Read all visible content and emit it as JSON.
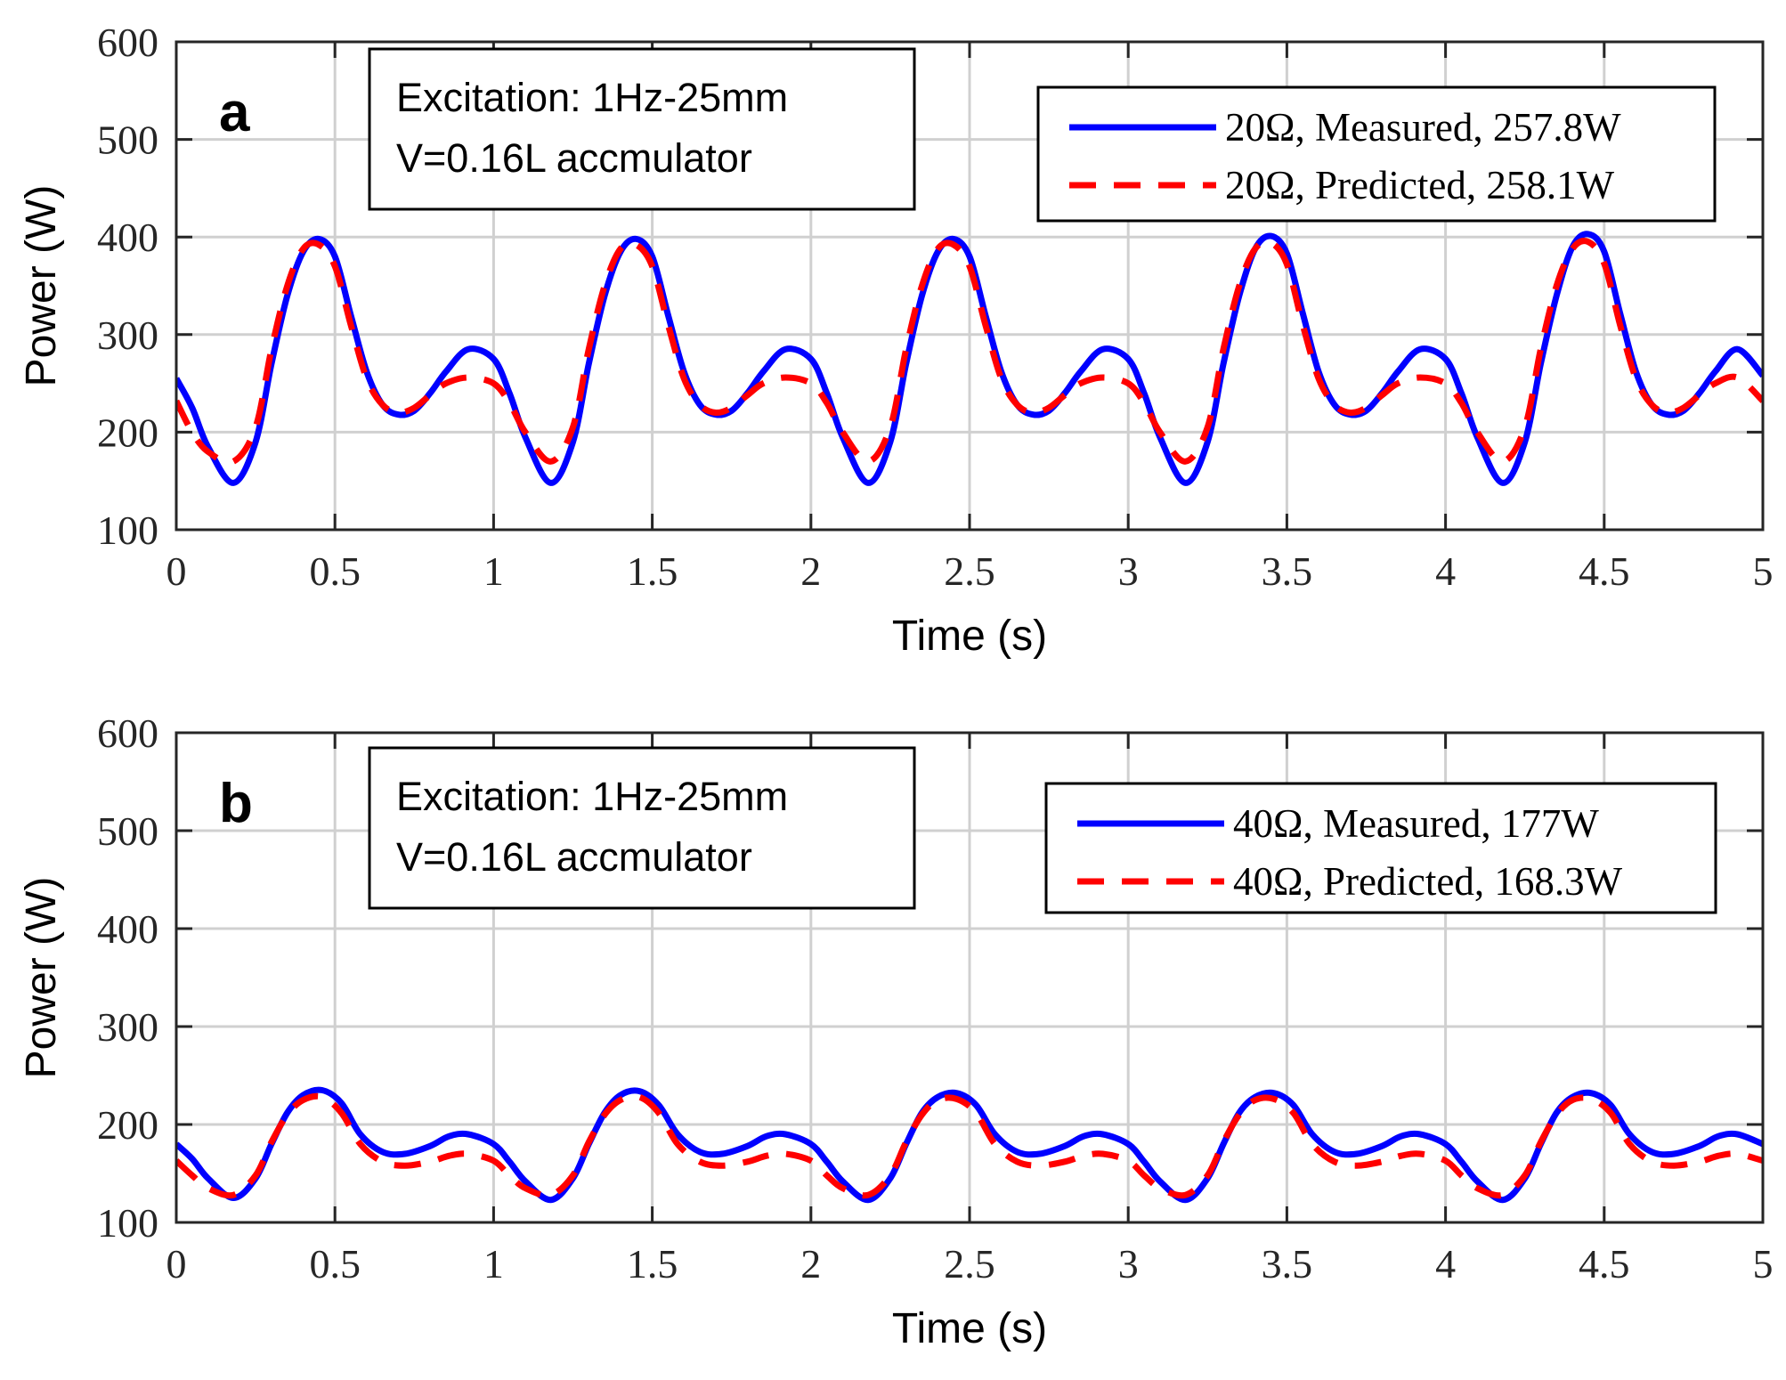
{
  "chart_data": [
    {
      "type": "line",
      "panel_label": "a",
      "xlabel": "Time (s)",
      "ylabel": "Power (W)",
      "xlim": [
        0,
        5
      ],
      "ylim": [
        100,
        600
      ],
      "xticks": [
        0,
        0.5,
        1,
        1.5,
        2,
        2.5,
        3,
        3.5,
        4,
        4.5,
        5
      ],
      "xtick_labels": [
        "0",
        "0.5",
        "1",
        "1.5",
        "2",
        "2.5",
        "3",
        "3.5",
        "4",
        "4.5",
        "5"
      ],
      "yticks": [
        100,
        200,
        300,
        400,
        500,
        600
      ],
      "ytick_labels": [
        "100",
        "200",
        "300",
        "400",
        "500",
        "600"
      ],
      "grid": true,
      "annotation": [
        "Excitation: 1Hz-25mm",
        "V=0.16L accmulator"
      ],
      "legend_position": "top-right",
      "series": [
        {
          "name": "20Ω, Measured, 257.8W",
          "color": "#0000ff",
          "style": "solid",
          "x": [
            0,
            0.05,
            0.1,
            0.18,
            0.25,
            0.3,
            0.35,
            0.4,
            0.45,
            0.5,
            0.55,
            0.6,
            0.65,
            0.7,
            0.75,
            0.8,
            0.85,
            0.92,
            1.0,
            1.05,
            1.1,
            1.18,
            1.25,
            1.3,
            1.35,
            1.4,
            1.45,
            1.5,
            1.55,
            1.6,
            1.65,
            1.7,
            1.75,
            1.8,
            1.85,
            1.92,
            2.0,
            2.05,
            2.1,
            2.18,
            2.25,
            2.3,
            2.35,
            2.4,
            2.45,
            2.5,
            2.55,
            2.6,
            2.65,
            2.7,
            2.75,
            2.8,
            2.85,
            2.92,
            3.0,
            3.05,
            3.1,
            3.18,
            3.25,
            3.3,
            3.35,
            3.4,
            3.45,
            3.5,
            3.55,
            3.6,
            3.65,
            3.7,
            3.75,
            3.8,
            3.85,
            3.92,
            4.0,
            4.05,
            4.1,
            4.18,
            4.25,
            4.3,
            4.35,
            4.4,
            4.45,
            4.5,
            4.55,
            4.6,
            4.65,
            4.7,
            4.75,
            4.8,
            4.85,
            4.92,
            5.0
          ],
          "values": [
            255,
            225,
            185,
            148,
            190,
            270,
            340,
            385,
            398,
            380,
            320,
            262,
            228,
            218,
            222,
            240,
            262,
            285,
            275,
            240,
            195,
            148,
            190,
            270,
            340,
            385,
            398,
            380,
            320,
            262,
            228,
            218,
            222,
            240,
            262,
            285,
            275,
            240,
            195,
            148,
            190,
            270,
            340,
            385,
            398,
            380,
            320,
            262,
            228,
            218,
            222,
            240,
            262,
            285,
            275,
            240,
            195,
            148,
            190,
            270,
            340,
            388,
            401,
            383,
            322,
            262,
            228,
            218,
            222,
            240,
            262,
            285,
            275,
            240,
            195,
            148,
            190,
            270,
            340,
            390,
            403,
            385,
            322,
            262,
            228,
            218,
            222,
            240,
            262,
            285,
            258
          ]
        },
        {
          "name": "20Ω, Predicted, 258.1W",
          "color": "#ff0000",
          "style": "dashed",
          "x": [
            0,
            0.05,
            0.1,
            0.18,
            0.25,
            0.3,
            0.35,
            0.4,
            0.45,
            0.5,
            0.55,
            0.6,
            0.65,
            0.7,
            0.75,
            0.8,
            0.85,
            0.92,
            1.0,
            1.05,
            1.1,
            1.18,
            1.25,
            1.3,
            1.35,
            1.4,
            1.45,
            1.5,
            1.55,
            1.6,
            1.65,
            1.7,
            1.75,
            1.8,
            1.85,
            1.92,
            2.0,
            2.05,
            2.1,
            2.18,
            2.25,
            2.3,
            2.35,
            2.4,
            2.45,
            2.5,
            2.55,
            2.6,
            2.65,
            2.7,
            2.75,
            2.8,
            2.85,
            2.92,
            3.0,
            3.05,
            3.1,
            3.18,
            3.25,
            3.3,
            3.35,
            3.4,
            3.45,
            3.5,
            3.55,
            3.6,
            3.65,
            3.7,
            3.75,
            3.8,
            3.85,
            3.92,
            4.0,
            4.05,
            4.1,
            4.18,
            4.25,
            4.3,
            4.35,
            4.4,
            4.45,
            4.5,
            4.55,
            4.6,
            4.65,
            4.7,
            4.75,
            4.8,
            4.85,
            4.92,
            5.0
          ],
          "values": [
            232,
            200,
            180,
            170,
            205,
            285,
            350,
            388,
            392,
            370,
            310,
            255,
            228,
            220,
            225,
            238,
            250,
            256,
            250,
            230,
            200,
            170,
            205,
            285,
            350,
            388,
            392,
            370,
            310,
            255,
            228,
            220,
            225,
            238,
            250,
            256,
            250,
            230,
            200,
            170,
            205,
            285,
            350,
            388,
            392,
            370,
            310,
            255,
            228,
            220,
            225,
            238,
            250,
            256,
            250,
            230,
            200,
            170,
            205,
            285,
            350,
            388,
            394,
            372,
            310,
            255,
            228,
            220,
            225,
            238,
            250,
            256,
            250,
            230,
            200,
            170,
            205,
            285,
            350,
            388,
            395,
            373,
            310,
            255,
            228,
            220,
            225,
            238,
            250,
            256,
            232
          ]
        }
      ]
    },
    {
      "type": "line",
      "panel_label": "b",
      "xlabel": "Time (s)",
      "ylabel": "Power (W)",
      "xlim": [
        0,
        5
      ],
      "ylim": [
        100,
        600
      ],
      "xticks": [
        0,
        0.5,
        1,
        1.5,
        2,
        2.5,
        3,
        3.5,
        4,
        4.5,
        5
      ],
      "xtick_labels": [
        "0",
        "0.5",
        "1",
        "1.5",
        "2",
        "2.5",
        "3",
        "3.5",
        "4",
        "4.5",
        "5"
      ],
      "yticks": [
        100,
        200,
        300,
        400,
        500,
        600
      ],
      "ytick_labels": [
        "100",
        "200",
        "300",
        "400",
        "500",
        "600"
      ],
      "grid": true,
      "annotation": [
        "Excitation: 1Hz-25mm",
        "V=0.16L accmulator"
      ],
      "legend_position": "top-right",
      "series": [
        {
          "name": "40Ω, Measured, 177W",
          "color": "#0000ff",
          "style": "solid",
          "x": [
            0,
            0.05,
            0.1,
            0.18,
            0.25,
            0.3,
            0.35,
            0.4,
            0.46,
            0.52,
            0.58,
            0.65,
            0.72,
            0.8,
            0.86,
            0.92,
            1.0,
            1.05,
            1.1,
            1.18,
            1.25,
            1.3,
            1.35,
            1.4,
            1.46,
            1.52,
            1.58,
            1.65,
            1.72,
            1.8,
            1.86,
            1.92,
            2.0,
            2.05,
            2.1,
            2.18,
            2.25,
            2.3,
            2.35,
            2.4,
            2.46,
            2.52,
            2.58,
            2.65,
            2.72,
            2.8,
            2.86,
            2.92,
            3.0,
            3.05,
            3.1,
            3.18,
            3.25,
            3.3,
            3.35,
            3.4,
            3.46,
            3.52,
            3.58,
            3.65,
            3.72,
            3.8,
            3.86,
            3.92,
            4.0,
            4.05,
            4.1,
            4.18,
            4.25,
            4.3,
            4.35,
            4.4,
            4.46,
            4.52,
            4.58,
            4.65,
            4.72,
            4.8,
            4.86,
            4.92,
            5.0
          ],
          "values": [
            180,
            165,
            145,
            125,
            145,
            180,
            212,
            230,
            235,
            222,
            190,
            172,
            170,
            178,
            188,
            190,
            180,
            162,
            142,
            123,
            145,
            180,
            212,
            230,
            234,
            220,
            190,
            172,
            170,
            178,
            188,
            190,
            180,
            162,
            142,
            123,
            145,
            180,
            212,
            228,
            232,
            220,
            190,
            172,
            170,
            178,
            188,
            190,
            180,
            162,
            142,
            123,
            145,
            180,
            212,
            228,
            232,
            220,
            190,
            172,
            170,
            178,
            188,
            190,
            180,
            162,
            142,
            123,
            145,
            180,
            212,
            228,
            232,
            220,
            190,
            172,
            170,
            178,
            188,
            190,
            180
          ]
        },
        {
          "name": "40Ω, Predicted, 168.3W",
          "color": "#ff0000",
          "style": "dashed",
          "x": [
            0,
            0.05,
            0.1,
            0.18,
            0.25,
            0.3,
            0.35,
            0.4,
            0.46,
            0.52,
            0.58,
            0.65,
            0.72,
            0.8,
            0.86,
            0.92,
            1.0,
            1.05,
            1.1,
            1.18,
            1.25,
            1.3,
            1.35,
            1.4,
            1.46,
            1.52,
            1.58,
            1.65,
            1.72,
            1.8,
            1.86,
            1.92,
            2.0,
            2.05,
            2.1,
            2.18,
            2.25,
            2.3,
            2.35,
            2.4,
            2.46,
            2.52,
            2.58,
            2.65,
            2.72,
            2.8,
            2.86,
            2.92,
            3.0,
            3.05,
            3.1,
            3.18,
            3.25,
            3.3,
            3.35,
            3.4,
            3.46,
            3.52,
            3.58,
            3.65,
            3.72,
            3.8,
            3.86,
            3.92,
            4.0,
            4.05,
            4.1,
            4.18,
            4.25,
            4.3,
            4.35,
            4.4,
            4.46,
            4.52,
            4.58,
            4.65,
            4.72,
            4.8,
            4.86,
            4.92,
            5.0
          ],
          "values": [
            163,
            148,
            135,
            128,
            148,
            182,
            210,
            225,
            228,
            212,
            180,
            162,
            158,
            162,
            168,
            170,
            163,
            148,
            135,
            128,
            148,
            182,
            210,
            225,
            228,
            212,
            180,
            162,
            158,
            162,
            168,
            170,
            163,
            148,
            135,
            128,
            148,
            182,
            210,
            225,
            226,
            212,
            180,
            162,
            158,
            162,
            168,
            170,
            163,
            148,
            135,
            128,
            148,
            182,
            210,
            225,
            226,
            212,
            180,
            162,
            158,
            162,
            168,
            170,
            163,
            148,
            135,
            128,
            148,
            182,
            210,
            225,
            226,
            212,
            180,
            162,
            158,
            162,
            168,
            170,
            163
          ]
        }
      ]
    }
  ]
}
